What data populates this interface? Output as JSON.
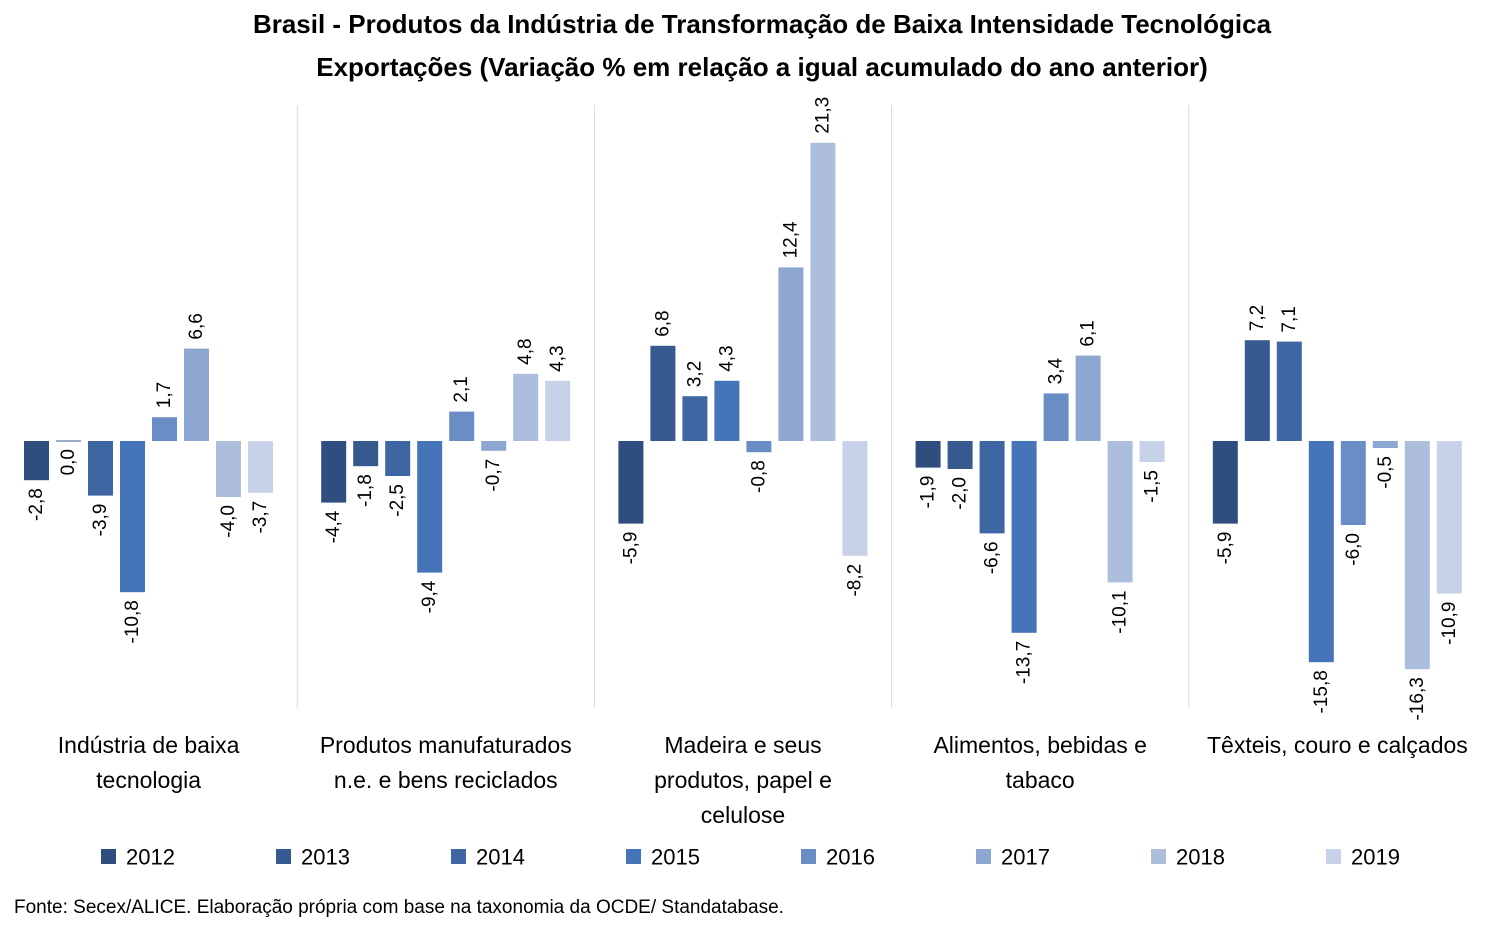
{
  "chart_data": {
    "type": "bar",
    "title": "Brasil - Produtos da Indústria de Transformação de Baixa Intensidade Tecnológica",
    "subtitle": "Exportações (Variação % em relação a igual acumulado do ano anterior)",
    "categories": [
      [
        "Indústria de baixa",
        "tecnologia"
      ],
      [
        "Produtos manufaturados",
        "n.e. e bens reciclados"
      ],
      [
        "Madeira e seus",
        "produtos, papel e",
        "celulose"
      ],
      [
        "Alimentos, bebidas e",
        "tabaco"
      ],
      [
        "Têxteis, couro e calçados"
      ]
    ],
    "series": [
      {
        "name": "2012",
        "color": "#2f4e7f",
        "values": [
          -2.8,
          -4.4,
          -5.9,
          -1.9,
          -5.9
        ]
      },
      {
        "name": "2013",
        "color": "#36598f",
        "values": [
          0.0,
          -1.8,
          6.8,
          -2.0,
          7.2
        ]
      },
      {
        "name": "2014",
        "color": "#3d66a3",
        "values": [
          -3.9,
          -2.5,
          3.2,
          -6.6,
          7.1
        ]
      },
      {
        "name": "2015",
        "color": "#4674b8",
        "values": [
          -10.8,
          -9.4,
          4.3,
          -13.7,
          -15.8
        ]
      },
      {
        "name": "2016",
        "color": "#6a8dc6",
        "values": [
          1.7,
          2.1,
          -0.8,
          3.4,
          -6.0
        ]
      },
      {
        "name": "2017",
        "color": "#8ea6d2",
        "values": [
          6.6,
          -0.7,
          12.4,
          6.1,
          -0.5
        ]
      },
      {
        "name": "2018",
        "color": "#adbedd",
        "values": [
          -4.0,
          4.8,
          21.3,
          -10.1,
          -16.3
        ]
      },
      {
        "name": "2019",
        "color": "#c7d2e8",
        "values": [
          -3.7,
          4.3,
          -8.2,
          -1.5,
          -10.9
        ]
      }
    ],
    "ylim": [
      -19,
      23
    ],
    "grid": false,
    "legend": "bottom",
    "decimal_separator": ","
  },
  "source": "Fonte: Secex/ALICE. Elaboração própria com base na taxonomia da OCDE/ Standatabase."
}
